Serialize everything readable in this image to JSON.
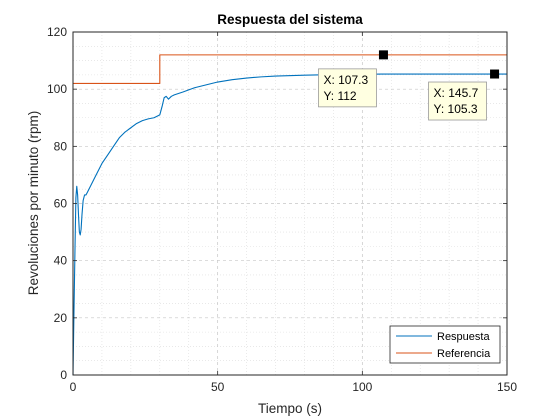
{
  "chart_data": {
    "type": "line",
    "title": "Respuesta del sistema",
    "xlabel": "Tiempo (s)",
    "ylabel": "Revoluciones por minuto (rpm)",
    "xlim": [
      0,
      150
    ],
    "ylim": [
      0,
      120
    ],
    "xticks": [
      0,
      50,
      100,
      150
    ],
    "yticks": [
      0,
      20,
      40,
      60,
      80,
      100,
      120
    ],
    "grid": "on (major dashed, minor dotted)",
    "legend_position": "bottom-right",
    "series": [
      {
        "name": "Respuesta",
        "color": "#0072BD",
        "x": [
          0,
          0.3,
          0.7,
          1.0,
          1.3,
          1.6,
          1.9,
          2.2,
          2.5,
          2.8,
          3.1,
          3.5,
          4.0,
          4.5,
          5,
          6,
          7,
          8,
          10,
          12,
          14,
          16,
          18,
          20,
          22,
          24,
          26,
          28,
          30,
          30.8,
          31.5,
          32.2,
          33.0,
          34.0,
          35,
          38,
          42,
          46,
          50,
          55,
          60,
          65,
          70,
          80,
          90,
          100,
          107.3,
          120,
          130,
          145.7,
          150
        ],
        "y": [
          0,
          20,
          45,
          62,
          66,
          63,
          56,
          50,
          49,
          51,
          56,
          61,
          63,
          63,
          64,
          66,
          68,
          70,
          74,
          77,
          80,
          83,
          85,
          86.5,
          88,
          89,
          89.6,
          90,
          91,
          94,
          97,
          97.5,
          96.5,
          97.5,
          98,
          99,
          100.5,
          101.5,
          102.5,
          103.3,
          103.9,
          104.3,
          104.6,
          104.9,
          105.1,
          105.2,
          105.3,
          105.3,
          105.3,
          105.3,
          105.3
        ]
      },
      {
        "name": "Referencia",
        "color": "#D95319",
        "x": [
          0,
          30,
          30,
          150
        ],
        "y": [
          102,
          102,
          112,
          112
        ]
      }
    ],
    "datatips": [
      {
        "x": 107.3,
        "y": 112,
        "x_label": "X: 107.3",
        "y_label": "Y: 112"
      },
      {
        "x": 145.7,
        "y": 105.3,
        "x_label": "X: 145.7",
        "y_label": "Y: 105.3"
      }
    ]
  }
}
